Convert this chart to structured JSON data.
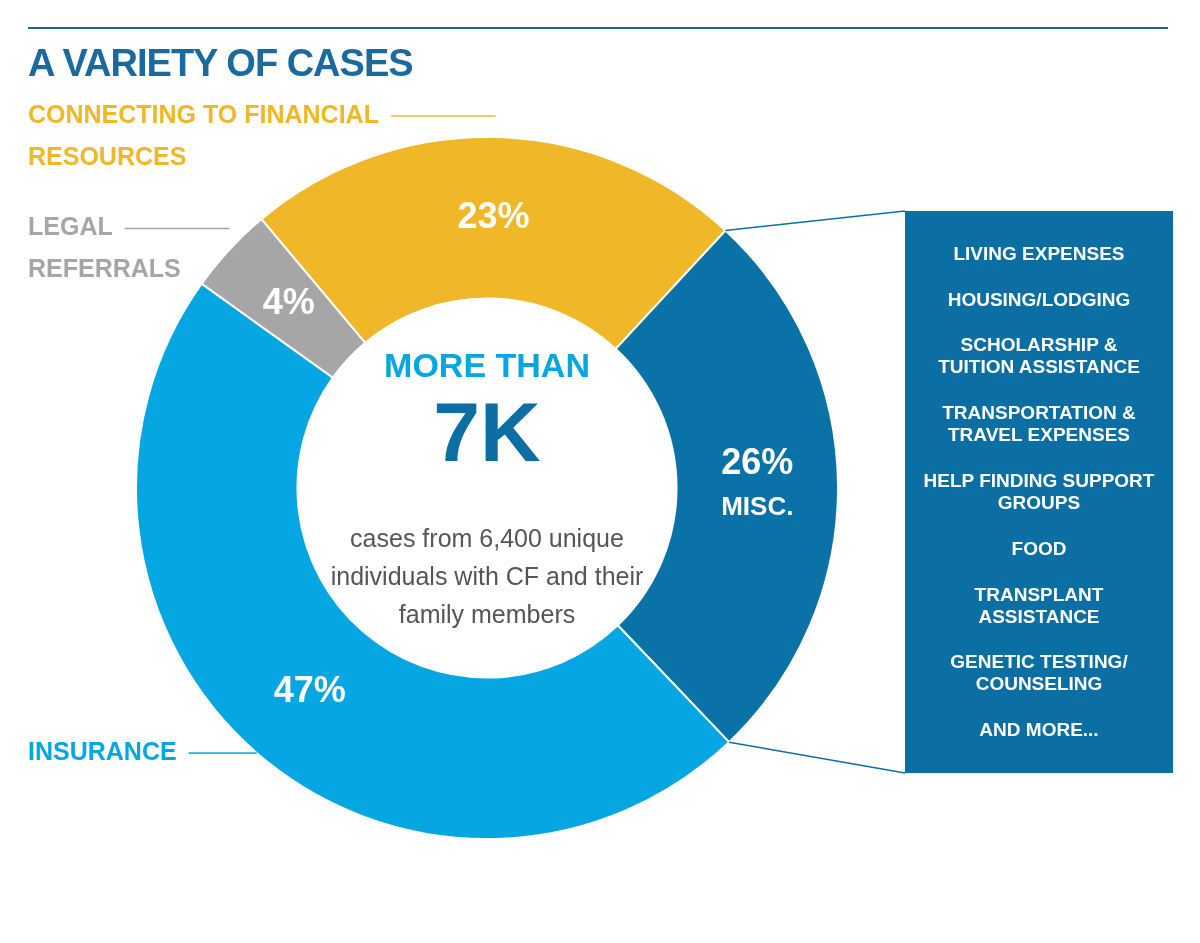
{
  "chart_data": {
    "type": "donut",
    "title": "A VARIETY OF CASES",
    "categories": [
      "CONNECTING TO FINANCIAL RESOURCES",
      "MISC.",
      "INSURANCE",
      "LEGAL REFERRALS"
    ],
    "values": [
      23,
      26,
      47,
      4
    ],
    "value_labels": [
      "23%",
      "26%",
      "47%",
      "4%"
    ],
    "colors": [
      "#f0b828",
      "#0b72a8",
      "#05a6e2",
      "#a6a6a6"
    ],
    "legend": false,
    "annotations": [
      "MORE THAN",
      "7K",
      "cases from 6,400 unique individuals with CF and their family members",
      "LIVING EXPENSES",
      "HOUSING/LODGING",
      "SCHOLARSHIP & TUITION ASSISTANCE",
      "TRANSPORTATION & TRAVEL EXPENSES",
      "HELP FINDING SUPPORT GROUPS",
      "FOOD",
      "TRANSPLANT ASSISTANCE",
      "GENETIC TESTING/ COUNSELING",
      "AND MORE..."
    ]
  }
}
